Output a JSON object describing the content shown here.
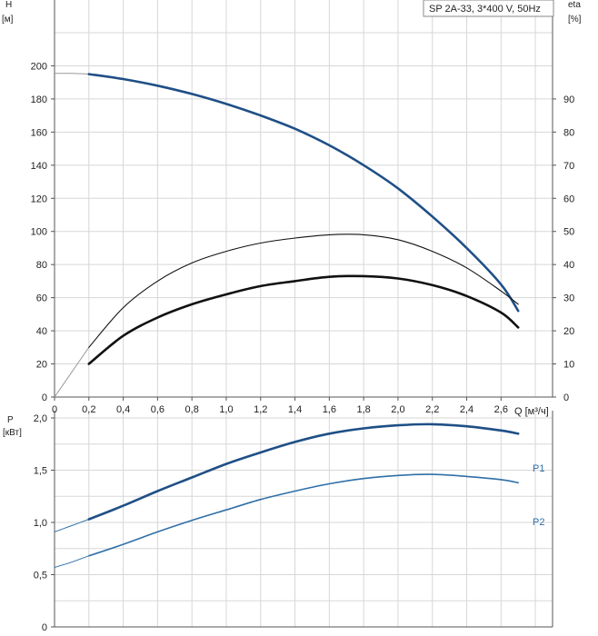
{
  "legend": {
    "text": "SP 2A-33, 3*400 V, 50Hz"
  },
  "colors": {
    "grid": "#d7d7d7",
    "axis": "#555555",
    "blue": "#1f4f86",
    "blueLight": "#2f6fa8",
    "black": "#111111",
    "thin": "#9a9a9a"
  },
  "chart_data": [
    {
      "type": "line",
      "title": "",
      "xlabel": "Q [м³/ч]",
      "xlim": [
        0,
        2.9
      ],
      "x_ticks": [
        "0",
        "0,2",
        "0,4",
        "0,6",
        "0,8",
        "1,0",
        "1,2",
        "1,4",
        "1,6",
        "1,8",
        "2,0",
        "2,2",
        "2,4",
        "2,6"
      ],
      "left_axis": {
        "label_line1": "H",
        "label_line2": "[м]",
        "ylim": [
          0,
          220
        ],
        "ticks": [
          "0",
          "20",
          "40",
          "60",
          "80",
          "100",
          "120",
          "140",
          "160",
          "180",
          "200"
        ]
      },
      "right_axis": {
        "label_line1": "eta",
        "label_line2": "[%]",
        "ylim": [
          0,
          110
        ],
        "ticks": [
          "0",
          "10",
          "20",
          "30",
          "40",
          "50",
          "60",
          "70",
          "80",
          "90"
        ]
      },
      "grid": true,
      "series": [
        {
          "role": "head",
          "axis": "left",
          "style": "thick-blue",
          "points": [
            [
              0.2,
              195
            ],
            [
              0.4,
              192
            ],
            [
              0.6,
              188
            ],
            [
              0.8,
              183
            ],
            [
              1.0,
              177
            ],
            [
              1.2,
              170
            ],
            [
              1.4,
              162
            ],
            [
              1.6,
              152
            ],
            [
              1.8,
              140
            ],
            [
              2.0,
              126
            ],
            [
              2.2,
              109
            ],
            [
              2.4,
              90
            ],
            [
              2.6,
              68
            ],
            [
              2.7,
              52
            ]
          ],
          "extension": [
            [
              0,
              195.5
            ],
            [
              0.1,
              195.4
            ],
            [
              0.2,
              195
            ]
          ]
        },
        {
          "role": "eta_pump",
          "axis": "right",
          "style": "thin-black",
          "points": [
            [
              0.2,
              15
            ],
            [
              0.4,
              27
            ],
            [
              0.6,
              35
            ],
            [
              0.8,
              40.5
            ],
            [
              1.0,
              44
            ],
            [
              1.2,
              46.5
            ],
            [
              1.4,
              48
            ],
            [
              1.6,
              49
            ],
            [
              1.8,
              49
            ],
            [
              2.0,
              47.5
            ],
            [
              2.2,
              44
            ],
            [
              2.4,
              39
            ],
            [
              2.6,
              32
            ],
            [
              2.7,
              28
            ]
          ],
          "extension": [
            [
              0,
              0
            ],
            [
              0.1,
              7.5
            ],
            [
              0.2,
              15
            ]
          ]
        },
        {
          "role": "eta_total",
          "axis": "right",
          "style": "thick-black",
          "points": [
            [
              0.2,
              10
            ],
            [
              0.4,
              18.5
            ],
            [
              0.6,
              24
            ],
            [
              0.8,
              28
            ],
            [
              1.0,
              31
            ],
            [
              1.2,
              33.5
            ],
            [
              1.4,
              35
            ],
            [
              1.6,
              36.3
            ],
            [
              1.8,
              36.5
            ],
            [
              2.0,
              35.8
            ],
            [
              2.2,
              33.8
            ],
            [
              2.4,
              30.5
            ],
            [
              2.6,
              25.5
            ],
            [
              2.7,
              21
            ]
          ]
        }
      ]
    },
    {
      "type": "line",
      "title": "",
      "xlim": [
        0,
        2.9
      ],
      "y_axis": {
        "label_line1": "P",
        "label_line2": "[кВт]",
        "ylim": [
          0,
          2.0
        ],
        "ticks": [
          "0",
          "0,5",
          "1,0",
          "1,5",
          "2,0"
        ]
      },
      "grid": true,
      "series": [
        {
          "name": "P1",
          "style": "thick-blue",
          "points": [
            [
              0.2,
              1.03
            ],
            [
              0.4,
              1.16
            ],
            [
              0.6,
              1.3
            ],
            [
              0.8,
              1.43
            ],
            [
              1.0,
              1.56
            ],
            [
              1.2,
              1.67
            ],
            [
              1.4,
              1.77
            ],
            [
              1.6,
              1.85
            ],
            [
              1.8,
              1.9
            ],
            [
              2.0,
              1.93
            ],
            [
              2.2,
              1.94
            ],
            [
              2.4,
              1.92
            ],
            [
              2.6,
              1.88
            ],
            [
              2.7,
              1.85
            ]
          ],
          "extension": [
            [
              0,
              0.91
            ],
            [
              0.1,
              0.97
            ],
            [
              0.2,
              1.03
            ]
          ]
        },
        {
          "name": "P2",
          "style": "medium-blue",
          "points": [
            [
              0.2,
              0.68
            ],
            [
              0.4,
              0.79
            ],
            [
              0.6,
              0.91
            ],
            [
              0.8,
              1.02
            ],
            [
              1.0,
              1.12
            ],
            [
              1.2,
              1.22
            ],
            [
              1.4,
              1.3
            ],
            [
              1.6,
              1.37
            ],
            [
              1.8,
              1.42
            ],
            [
              2.0,
              1.45
            ],
            [
              2.2,
              1.46
            ],
            [
              2.4,
              1.44
            ],
            [
              2.6,
              1.41
            ],
            [
              2.7,
              1.38
            ]
          ],
          "extension": [
            [
              0,
              0.57
            ],
            [
              0.1,
              0.62
            ],
            [
              0.2,
              0.68
            ]
          ]
        }
      ]
    }
  ]
}
